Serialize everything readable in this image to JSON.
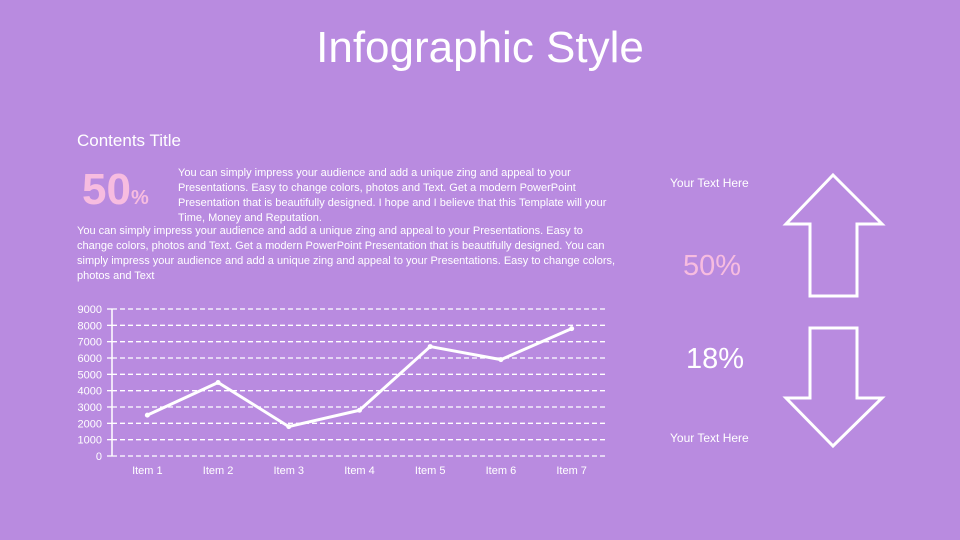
{
  "title": "Infographic Style",
  "contents_title": "Contents Title",
  "big_percent": {
    "number": "50",
    "symbol": "%"
  },
  "paragraph_1": "You can simply impress your audience and add a unique zing and appeal to your Presentations. Easy to change colors, photos and Text. Get a modern PowerPoint Presentation that is beautifully designed. I hope and I believe that this Template will your Time, Money and Reputation.",
  "paragraph_2": "You can simply impress your audience and add a unique zing and appeal to your Presentations. Easy to change colors, photos and Text. Get a modern PowerPoint Presentation that is beautifully designed. You can simply impress your audience and add a unique zing and appeal to your Presentations. Easy to change colors, photos and Text",
  "side_panel": {
    "top_label": "Your Text Here",
    "up_value": "50%",
    "down_value": "18%",
    "bottom_label": "Your Text Here",
    "up_color": "#f7bce0",
    "down_color": "#ffffff"
  },
  "colors": {
    "background": "#b98be0",
    "accent_pink": "#f7bce0",
    "white": "#ffffff"
  },
  "chart_data": {
    "type": "line",
    "categories": [
      "Item 1",
      "Item 2",
      "Item 3",
      "Item 4",
      "Item 5",
      "Item 6",
      "Item 7"
    ],
    "series": [
      {
        "values": [
          2500,
          4500,
          1800,
          2800,
          6700,
          5900,
          7800
        ]
      }
    ],
    "y_ticks": [
      "9000",
      "8000",
      "7000",
      "6000",
      "5000",
      "4000",
      "3000",
      "2000",
      "1000",
      "0"
    ],
    "ylim": [
      0,
      9000
    ],
    "grid": true,
    "grid_style": "dashed",
    "legend": "none"
  }
}
